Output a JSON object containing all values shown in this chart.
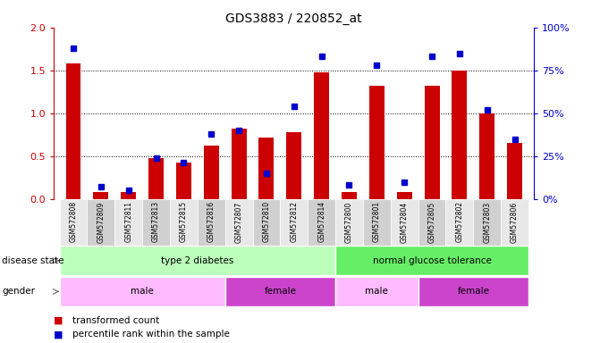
{
  "title": "GDS3883 / 220852_at",
  "samples": [
    "GSM572808",
    "GSM572809",
    "GSM572811",
    "GSM572813",
    "GSM572815",
    "GSM572816",
    "GSM572807",
    "GSM572810",
    "GSM572812",
    "GSM572814",
    "GSM572800",
    "GSM572801",
    "GSM572804",
    "GSM572805",
    "GSM572802",
    "GSM572803",
    "GSM572806"
  ],
  "transformed_count": [
    1.58,
    0.08,
    0.08,
    0.48,
    0.42,
    0.62,
    0.82,
    0.72,
    0.78,
    1.48,
    0.08,
    1.32,
    0.08,
    1.32,
    1.5,
    1.0,
    0.65
  ],
  "percentile_rank_pct": [
    88,
    7,
    5,
    24,
    21,
    38,
    40,
    15,
    54,
    83,
    8,
    78,
    10,
    83,
    85,
    52,
    35
  ],
  "red_color": "#cc0000",
  "blue_color": "#0000cc",
  "ylim_left": [
    0,
    2
  ],
  "ylim_right": [
    0,
    100
  ],
  "yticks_left": [
    0,
    0.5,
    1.0,
    1.5,
    2.0
  ],
  "yticks_right": [
    0,
    25,
    50,
    75,
    100
  ],
  "left_label_color": "#cc0000",
  "right_label_color": "#0000cc",
  "n_samples": 17,
  "disease_state_groups": [
    {
      "label": "type 2 diabetes",
      "start": 0,
      "end": 10,
      "color": "#bbffbb"
    },
    {
      "label": "normal glucose tolerance",
      "start": 10,
      "end": 17,
      "color": "#66ee66"
    }
  ],
  "gender_groups": [
    {
      "label": "male",
      "start": 0,
      "end": 6,
      "color": "#ffbbff"
    },
    {
      "label": "female",
      "start": 6,
      "end": 10,
      "color": "#dd44dd"
    },
    {
      "label": "male",
      "start": 10,
      "end": 13,
      "color": "#ffbbff"
    },
    {
      "label": "female",
      "start": 13,
      "end": 17,
      "color": "#dd44dd"
    }
  ],
  "legend_items": [
    {
      "label": "transformed count",
      "color": "#cc0000"
    },
    {
      "label": "percentile rank within the sample",
      "color": "#0000cc"
    }
  ]
}
